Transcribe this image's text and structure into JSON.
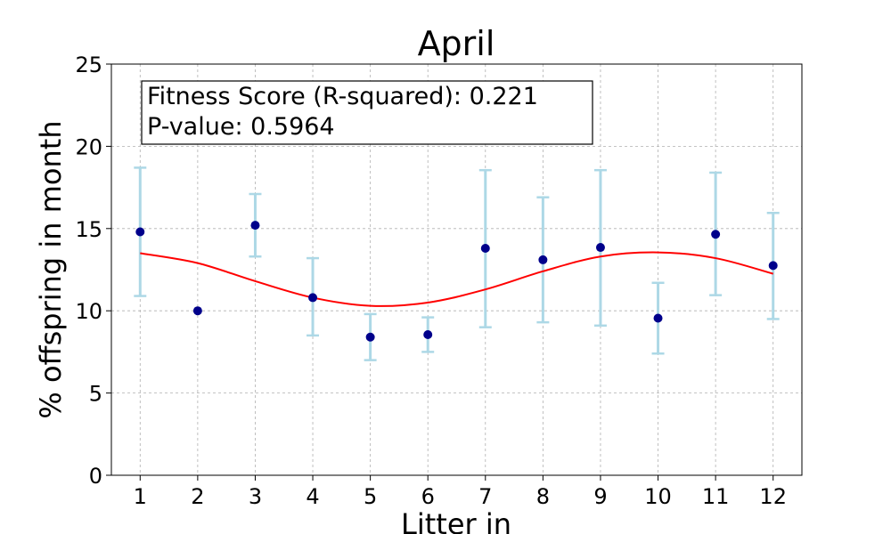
{
  "chart_data": {
    "type": "scatter",
    "title": "April",
    "xlabel": "Litter in",
    "ylabel": "% offspring in month",
    "xlim": [
      0.5,
      12.5
    ],
    "ylim": [
      0,
      25
    ],
    "x_ticks": [
      "1",
      "2",
      "3",
      "4",
      "5",
      "6",
      "7",
      "8",
      "9",
      "10",
      "11",
      "12"
    ],
    "y_ticks": [
      "0",
      "5",
      "10",
      "15",
      "20",
      "25"
    ],
    "grid": true,
    "annotation": {
      "line1": "Fitness Score (R-squared): 0.221",
      "line2": "P-value: 0.5964",
      "position": "top-left"
    },
    "points": {
      "color": "#00008b",
      "x": [
        1,
        2,
        3,
        4,
        5,
        6,
        7,
        8,
        9,
        10,
        11,
        12
      ],
      "y": [
        14.8,
        10.0,
        15.2,
        10.8,
        8.4,
        8.55,
        13.8,
        13.1,
        13.85,
        9.55,
        14.65,
        12.75
      ]
    },
    "error_bars": {
      "color": "#add8e6",
      "x": [
        1,
        3,
        4,
        5,
        6,
        7,
        8,
        9,
        10,
        11,
        12
      ],
      "low": [
        10.9,
        13.3,
        8.5,
        7.0,
        7.5,
        9.0,
        9.3,
        9.1,
        7.4,
        10.95,
        9.5
      ],
      "high": [
        18.7,
        17.1,
        13.2,
        9.8,
        9.6,
        18.55,
        16.9,
        18.55,
        11.7,
        18.4,
        15.95
      ]
    },
    "fit_curve": {
      "color": "#ff0000",
      "type": "sinusoidal",
      "x": [
        1,
        2,
        3,
        4,
        5,
        6,
        7,
        8,
        9,
        10,
        11,
        12
      ],
      "y": [
        13.5,
        12.9,
        11.8,
        10.8,
        10.3,
        10.5,
        11.3,
        12.4,
        13.3,
        13.55,
        13.2,
        12.25
      ]
    }
  }
}
